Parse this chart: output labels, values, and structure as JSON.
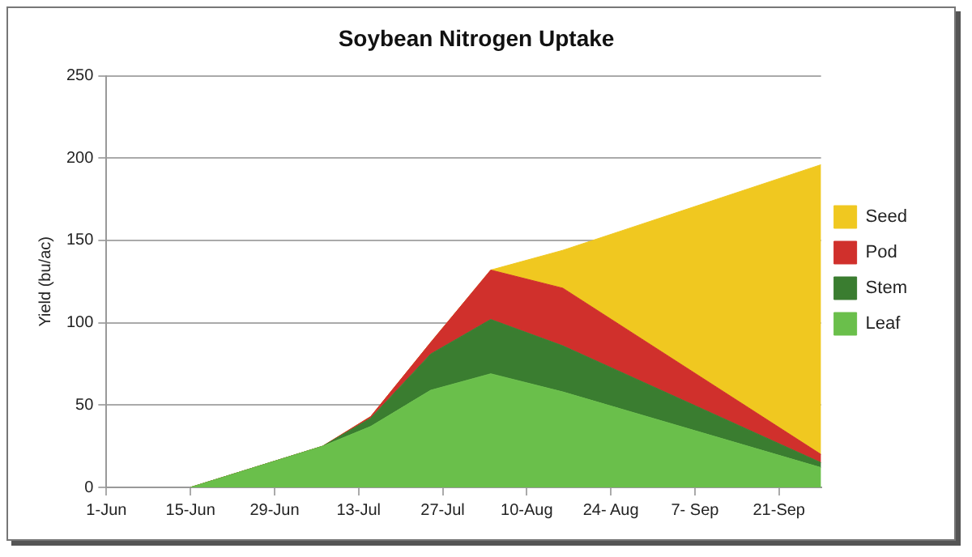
{
  "chart_data": {
    "type": "area",
    "title": "Soybean Nitrogen Uptake",
    "ylabel": "Yield (bu/ac)",
    "stacked": true,
    "x": [
      "--06-15",
      "--07-07",
      "--07-15",
      "--07-25",
      "--08-04",
      "--08-16",
      "--09-28"
    ],
    "series": [
      {
        "name": "Leaf",
        "color": "#6abf4b",
        "values": [
          0,
          25,
          37,
          59,
          69,
          58,
          12
        ]
      },
      {
        "name": "Stem",
        "color": "#3a7d30",
        "values": [
          0,
          0,
          5,
          22,
          33,
          28,
          3
        ]
      },
      {
        "name": "Pod",
        "color": "#d0302c",
        "values": [
          0,
          0,
          1,
          7,
          30,
          35,
          5
        ]
      },
      {
        "name": "Seed",
        "color": "#f0c820",
        "values": [
          0,
          0,
          0,
          0,
          0,
          23,
          176
        ]
      }
    ],
    "xlim": [
      "--06-01",
      "--09-28"
    ],
    "xticks": [
      {
        "value": "--06-01",
        "label": "1-Jun"
      },
      {
        "value": "--06-15",
        "label": "15-Jun"
      },
      {
        "value": "--06-29",
        "label": "29-Jun"
      },
      {
        "value": "--07-13",
        "label": "13-Jul"
      },
      {
        "value": "--07-27",
        "label": "27-Jul"
      },
      {
        "value": "--08-10",
        "label": "10-Aug"
      },
      {
        "value": "--08-24",
        "label": "24- Aug"
      },
      {
        "value": "--09-07",
        "label": "7- Sep"
      },
      {
        "value": "--09-21",
        "label": "21-Sep"
      }
    ],
    "ylim": [
      0,
      250
    ],
    "yticks": [
      0,
      50,
      100,
      150,
      200,
      250
    ],
    "grid": "y",
    "legend": "right"
  }
}
